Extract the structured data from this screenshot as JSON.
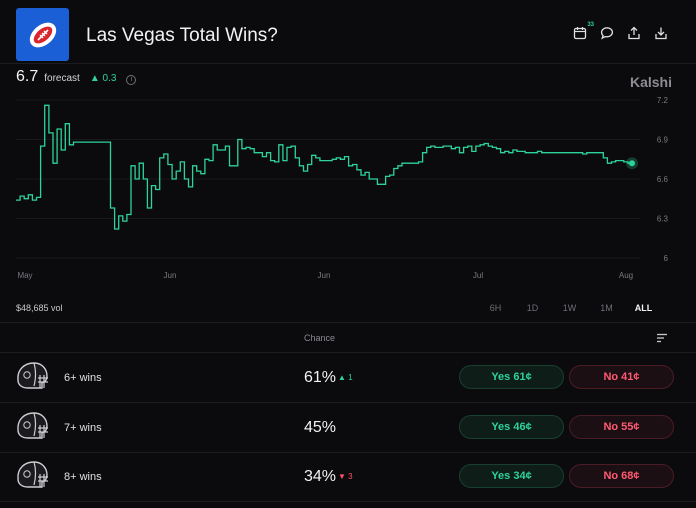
{
  "header": {
    "title": "Las Vegas Total Wins?",
    "badge_count": "33",
    "icons": [
      "calendar-icon",
      "comment-icon",
      "share-icon",
      "download-icon"
    ]
  },
  "forecast": {
    "value": "6.7",
    "label": "forecast",
    "change": "▲ 0.3",
    "info": "i"
  },
  "brand": "Kalshi",
  "chart_data": {
    "type": "line",
    "y_ticks": [
      "7.2",
      "6.9",
      "6.6",
      "6.3",
      "6"
    ],
    "x_ticks": [
      "May",
      "Jun",
      "Jun",
      "Jul",
      "Aug"
    ],
    "ylim": [
      6,
      7.2
    ],
    "series": [
      {
        "color": "#2ed39a",
        "values": [
          6.44,
          6.44,
          6.47,
          6.45,
          6.48,
          6.44,
          6.46,
          6.85,
          7.16,
          6.95,
          6.72,
          6.98,
          6.82,
          7.02,
          6.86,
          6.88,
          6.88,
          6.88,
          6.88,
          6.88,
          6.88,
          6.88,
          6.88,
          6.88,
          6.38,
          6.22,
          6.32,
          6.28,
          6.33,
          6.7,
          6.6,
          6.72,
          6.6,
          6.38,
          6.55,
          6.52,
          6.76,
          6.79,
          6.71,
          6.6,
          6.66,
          6.73,
          6.6,
          6.54,
          6.7,
          6.66,
          6.64,
          6.75,
          6.74,
          6.86,
          6.82,
          6.82,
          6.85,
          6.7,
          6.7,
          6.9,
          6.83,
          6.84,
          6.83,
          6.8,
          6.8,
          6.77,
          6.8,
          6.74,
          6.73,
          6.86,
          6.74,
          6.84,
          6.85,
          6.76,
          6.7,
          6.66,
          6.71,
          6.78,
          6.76,
          6.74,
          6.74,
          6.74,
          6.75,
          6.76,
          6.75,
          6.77,
          6.7,
          6.71,
          6.67,
          6.63,
          6.65,
          6.6,
          6.6,
          6.56,
          6.56,
          6.62,
          6.63,
          6.68,
          6.7,
          6.72,
          6.72,
          6.72,
          6.72,
          6.73,
          6.8,
          6.84,
          6.85,
          6.84,
          6.84,
          6.85,
          6.85,
          6.83,
          6.84,
          6.8,
          6.84,
          6.85,
          6.81,
          6.85,
          6.86,
          6.87,
          6.85,
          6.84,
          6.83,
          6.8,
          6.81,
          6.8,
          6.82,
          6.81,
          6.81,
          6.8,
          6.8,
          6.8,
          6.81,
          6.8,
          6.8,
          6.8,
          6.8,
          6.8,
          6.8,
          6.8,
          6.8,
          6.8,
          6.8,
          6.79,
          6.8,
          6.8,
          6.8,
          6.8,
          6.76,
          6.72,
          6.73,
          6.74,
          6.74,
          6.73,
          6.72
        ]
      }
    ]
  },
  "volume": "$48,685 vol",
  "ranges": [
    "6H",
    "1D",
    "1W",
    "1M",
    "ALL"
  ],
  "active_range": "ALL",
  "table": {
    "chance_header": "Chance",
    "rows": [
      {
        "label": "6+ wins",
        "chance": "61%",
        "delta": "▲ 1",
        "delta_dir": "up",
        "yes": "Yes 61¢",
        "no": "No 41¢"
      },
      {
        "label": "7+ wins",
        "chance": "45%",
        "delta": "",
        "delta_dir": "none",
        "yes": "Yes 46¢",
        "no": "No 55¢"
      },
      {
        "label": "8+ wins",
        "chance": "34%",
        "delta": "▼ 3",
        "delta_dir": "down",
        "yes": "Yes 34¢",
        "no": "No 68¢"
      }
    ]
  }
}
